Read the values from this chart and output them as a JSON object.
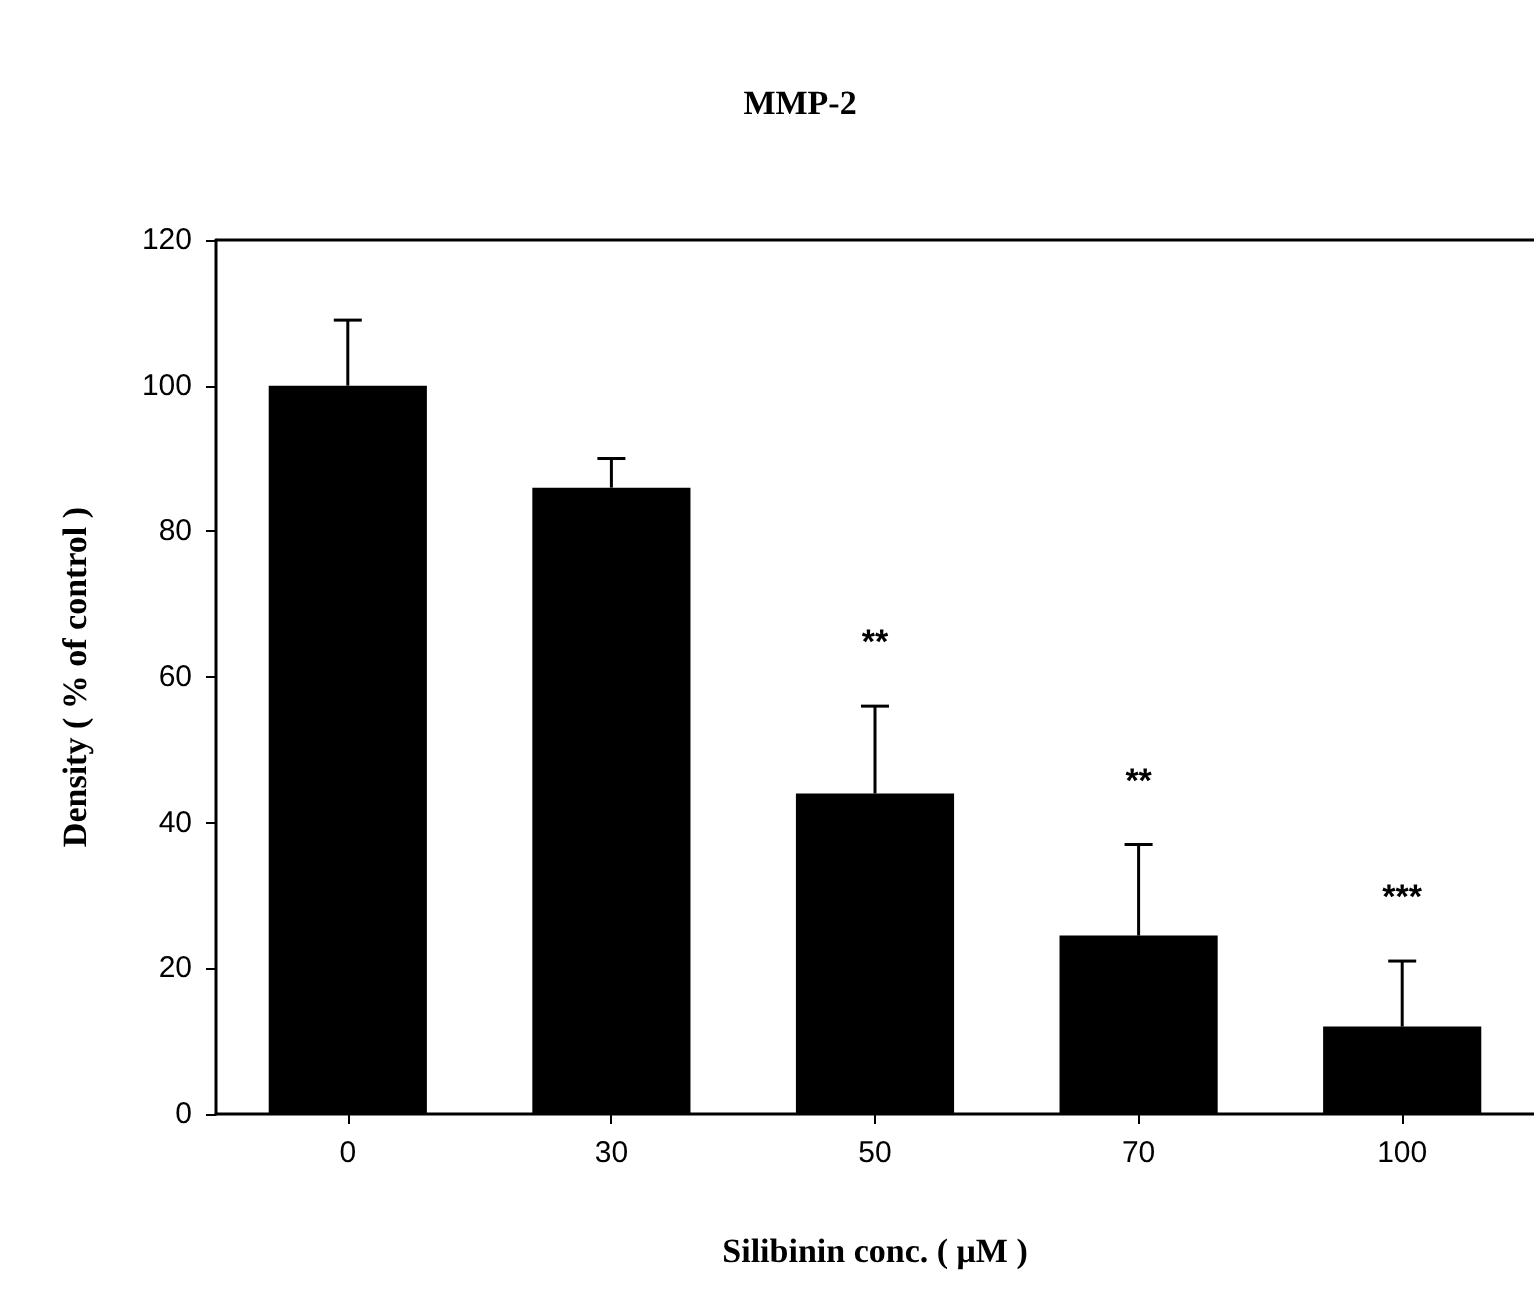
{
  "chart_data": {
    "type": "bar",
    "title": "MMP-2",
    "xlabel": "Silibinin conc. ( μM )",
    "ylabel": "Density ( % of control )",
    "categories": [
      "0",
      "30",
      "50",
      "70",
      "100"
    ],
    "values": [
      100,
      86,
      44,
      24.5,
      12
    ],
    "errors": [
      [
        100,
        109
      ],
      [
        86,
        90
      ],
      [
        44,
        56
      ],
      [
        24.5,
        37
      ],
      [
        12,
        21
      ]
    ],
    "color": "#000000",
    "ylim": [
      0,
      120
    ],
    "yticks": [
      0,
      20,
      40,
      60,
      80,
      100,
      120
    ],
    "grid": false,
    "annotations": [
      {
        "text": "**",
        "x": "50",
        "y": 56
      },
      {
        "text": "**",
        "x": "70",
        "y": 37
      },
      {
        "text": "***",
        "x": "100",
        "y": 21
      }
    ]
  }
}
